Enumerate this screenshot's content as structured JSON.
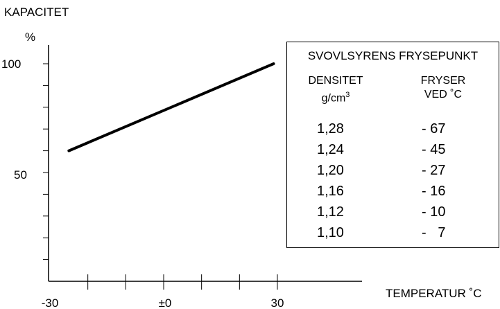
{
  "chart_data": {
    "type": "line",
    "ylabel": "KAPACITET",
    "yunit": "%",
    "xlabel": "TEMPERATUR ˚C",
    "x_ticks": [
      "-30",
      "±0",
      "30"
    ],
    "y_ticks": [
      "100",
      "50"
    ],
    "xlim": [
      -30,
      35
    ],
    "ylim": [
      0,
      110
    ],
    "series": [
      {
        "x": [
          -25,
          29
        ],
        "y": [
          60,
          100
        ]
      }
    ],
    "grid": false
  },
  "table": {
    "title": "SVOVLSYRENS FRYSEPUNKT",
    "col_density_line1": "DENSITET",
    "col_density_unit": "g/cm",
    "col_density_sup": "3",
    "col_freeze_line1": "FRYSER",
    "col_freeze_line2": "VED ˚C",
    "rows": [
      {
        "density": "1,28",
        "freeze": "- 67"
      },
      {
        "density": "1,24",
        "freeze": "- 45"
      },
      {
        "density": "1,20",
        "freeze": "- 27"
      },
      {
        "density": "1,16",
        "freeze": "- 16"
      },
      {
        "density": "1,12",
        "freeze": "- 10"
      },
      {
        "density": "1,10",
        "freeze": "-   7"
      }
    ]
  }
}
